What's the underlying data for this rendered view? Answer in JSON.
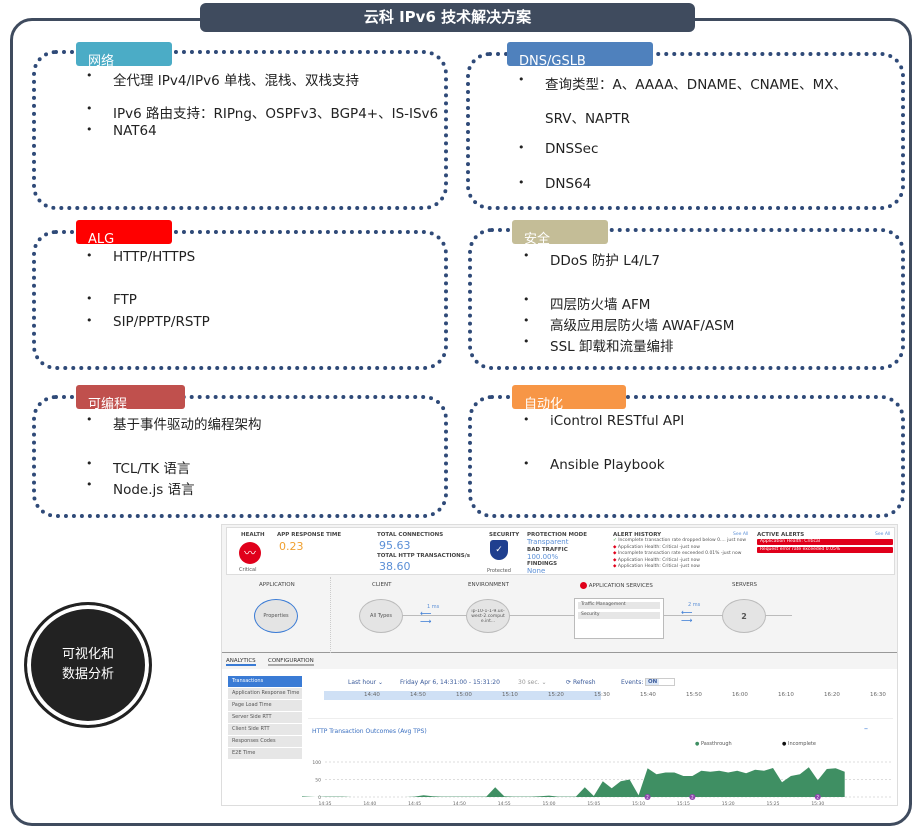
{
  "title": "云科 IPv6 技术解决方案",
  "sections": [
    {
      "tag": "网络",
      "color": "#4bacc6",
      "items": [
        "全代理 IPv4/IPv6 单栈、混栈、双栈支持",
        "IPv6 路由支持：RIPng、OSPFv3、BGP4+、IS-ISv6",
        "NAT64"
      ]
    },
    {
      "tag": "DNS/GSLB",
      "color": "#4f81bd",
      "items": [
        "查询类型：A、AAAA、DNAME、CNAME、MX、",
        "SRV、NAPTR",
        "DNSSec",
        "DNS64"
      ]
    },
    {
      "tag": "ALG",
      "color": "#ff0000",
      "items": [
        "HTTP/HTTPS",
        "FTP",
        "SIP/PPTP/RSTP"
      ]
    },
    {
      "tag": "安全",
      "color": "#c4bd97",
      "items": [
        "DDoS 防护 L4/L7",
        "四层防火墙 AFM",
        "高级应用层防火墙 AWAF/ASM",
        "SSL 卸载和流量编排"
      ]
    },
    {
      "tag": "可编程",
      "color": "#c0504d",
      "items": [
        "基于事件驱动的编程架构",
        "TCL/TK 语言",
        "Node.js 语言"
      ]
    },
    {
      "tag": "自动化",
      "color": "#f79646",
      "items": [
        "iControl RESTful API",
        "Ansible Playbook"
      ]
    }
  ],
  "circle_label": "可视化和数据分析",
  "dashboard": {
    "health": {
      "label": "HEALTH",
      "status": "Critical"
    },
    "app_response": {
      "label": "APP RESPONSE TIME",
      "value": "0.23"
    },
    "total_connections": {
      "label": "TOTAL CONNECTIONS",
      "value": "95.63"
    },
    "http_tx": {
      "label": "TOTAL HTTP TRANSACTIONS/s",
      "value": "38.60"
    },
    "security": {
      "label": "SECURITY",
      "status": "Protected"
    },
    "protection": {
      "mode_label": "PROTECTION MODE",
      "mode": "Transparent",
      "bad_label": "BAD TRAFFIC",
      "bad": "100.00%",
      "findings_label": "FINDINGS",
      "findings": "None"
    },
    "alert_history": {
      "label": "ALERT HISTORY",
      "see_all": "See All",
      "items": [
        "Incomplete transaction rate dropped below 0.... just now",
        "Application Health: Critical -just now",
        "Incomplete transaction rate exceeded 0.01% -just now",
        "Application Health: Critical -just now",
        "Application Health: Critical -just now"
      ]
    },
    "active_alerts": {
      "label": "ACTIVE ALERTS",
      "see_all": "See All",
      "items": [
        "Application Health: Critical",
        "Request error rate exceeded 0.05%"
      ]
    },
    "topology": {
      "application": "APPLICATION",
      "properties": "Properties",
      "client": "CLIENT",
      "all_types": "All Types",
      "client_latency": "1 ms",
      "environment": "ENVIRONMENT",
      "env_node": "ip-10-1-1-9.us-west-2.compute.int...",
      "app_services": "APPLICATION SERVICES",
      "services": [
        "Traffic Management",
        "Security"
      ],
      "server_latency": "2 ms",
      "servers": "SERVERS",
      "server_count": "2"
    },
    "tabs": [
      "ANALYTICS",
      "CONFIGURATION"
    ],
    "menu": [
      "Transactions",
      "Application Response Time",
      "Page Load Time",
      "Server Side RTT",
      "Client Side RTT",
      "Responses Codes",
      "E2E Time"
    ],
    "range": "Last hour ⌄",
    "range_text": "Friday Apr 6, 14:31:00 - 15:31:20",
    "interval": "30 sec. ⌄",
    "refresh": "Refresh",
    "events_label": "Events:",
    "events_state": "ON",
    "timeline_ticks": [
      "14:40",
      "14:50",
      "15:00",
      "15:10",
      "15:20",
      "15:30",
      "15:40",
      "15:50",
      "16:00",
      "16:10",
      "16:20",
      "16:30"
    ],
    "colors": {
      "accent": "#3a7bd5",
      "critical": "#e0001b",
      "passthrough": "#3f8f63"
    }
  },
  "chart_data": {
    "type": "area",
    "title": "HTTP Transaction Outcomes (Avg TPS)",
    "legend": [
      "Passthrough",
      "Incomplete"
    ],
    "legend_position": "top-right",
    "ylim": [
      0,
      100
    ],
    "yticks": [
      "0",
      "50",
      "100"
    ],
    "xticks": [
      "14:35",
      "14:40",
      "14:45",
      "14:50",
      "14:55",
      "15:00",
      "15:05",
      "15:10",
      "15:15",
      "15:20",
      "15:25",
      "15:30"
    ],
    "x_start": "14:32",
    "x_step_minutes": 1,
    "series": [
      {
        "name": "Passthrough",
        "values": [
          2,
          1,
          0,
          1,
          1,
          1,
          0,
          0,
          0,
          0,
          0,
          0,
          0,
          1,
          5,
          2,
          1,
          1,
          1,
          1,
          1,
          1,
          28,
          2,
          1,
          1,
          1,
          2,
          4,
          1,
          1,
          1,
          28,
          3,
          45,
          25,
          45,
          50,
          5,
          82,
          65,
          70,
          70,
          60,
          60,
          75,
          72,
          75,
          70,
          75,
          68,
          78,
          75,
          83,
          42,
          60,
          65,
          85,
          48,
          80,
          82,
          72
        ]
      }
    ],
    "events": [
      "15:11",
      "15:16",
      "15:30"
    ],
    "event_count": "2"
  }
}
